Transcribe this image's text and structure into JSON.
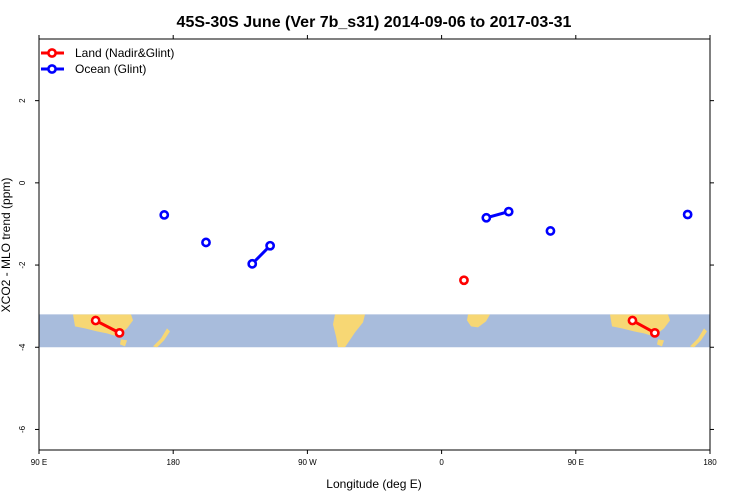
{
  "chart_data": {
    "type": "line",
    "title": "45S-30S June (Ver 7b_s31)   2014-09-06 to 2017-03-31",
    "xlabel": "Longitude (deg E)",
    "ylabel": "XCO2 - MLO trend (ppm)",
    "xlim": [
      90,
      540
    ],
    "ylim": [
      -6.5,
      3.5
    ],
    "x_ticks": [
      {
        "value": 90,
        "label": "90 E"
      },
      {
        "value": 180,
        "label": "180"
      },
      {
        "value": 270,
        "label": "90 W"
      },
      {
        "value": 360,
        "label": "0"
      },
      {
        "value": 450,
        "label": "90 E"
      },
      {
        "value": 540,
        "label": "180"
      }
    ],
    "y_ticks": [
      {
        "value": 2,
        "label": "2"
      },
      {
        "value": 0,
        "label": "0"
      },
      {
        "value": -2,
        "label": "-2"
      },
      {
        "value": -4,
        "label": "-4"
      },
      {
        "value": -6,
        "label": "-6"
      }
    ],
    "map_band": {
      "ymin": -4.0,
      "ymax": -3.2,
      "ocean_color": "#a8bcdc",
      "land_color": "#f7d774"
    },
    "legend": {
      "position": "top-left"
    },
    "series": [
      {
        "name": "Land (Nadir&Glint)",
        "color": "#ff0000",
        "segments": [
          [
            [
              128,
              -3.35
            ],
            [
              144,
              -3.65
            ]
          ],
          [
            [
              375,
              -2.37
            ]
          ],
          [
            [
              488,
              -3.35
            ],
            [
              503,
              -3.65
            ]
          ]
        ]
      },
      {
        "name": "Ocean (Glint)",
        "color": "#0000ff",
        "segments": [
          [
            [
              174,
              -0.78
            ]
          ],
          [
            [
              202,
              -1.45
            ]
          ],
          [
            [
              233,
              -1.97
            ],
            [
              245,
              -1.53
            ]
          ],
          [
            [
              390,
              -0.85
            ],
            [
              405,
              -0.7
            ]
          ],
          [
            [
              433,
              -1.17
            ]
          ],
          [
            [
              525,
              -0.77
            ]
          ]
        ]
      }
    ]
  }
}
